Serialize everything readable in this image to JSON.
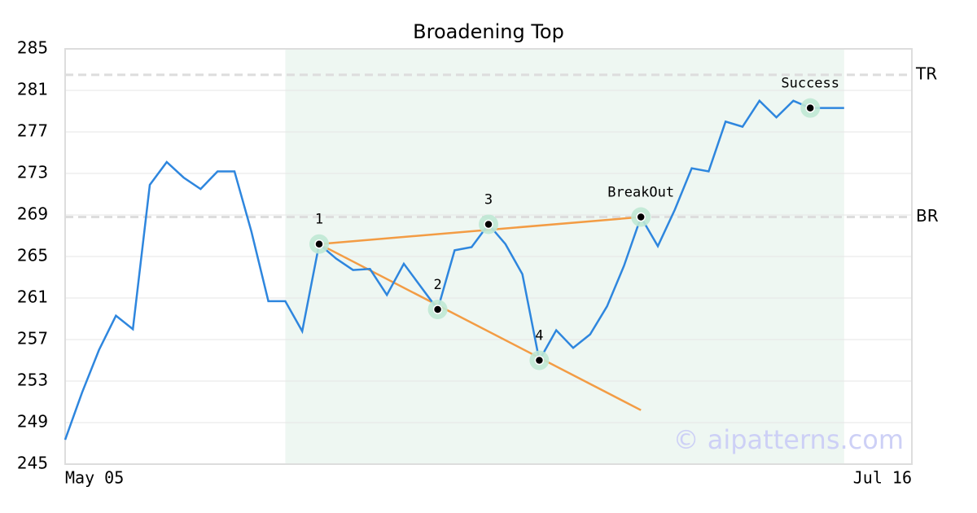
{
  "chart_data": {
    "type": "line",
    "title": "Broadening Top",
    "x": [
      0,
      1,
      2,
      3,
      4,
      5,
      6,
      7,
      8,
      9,
      10,
      11,
      12,
      13,
      14,
      15,
      16,
      17,
      18,
      19,
      20,
      21,
      22,
      23,
      24,
      25,
      26,
      27,
      28,
      29,
      30,
      31,
      32,
      33,
      34,
      35,
      36,
      37,
      38,
      39,
      40,
      41,
      42,
      43,
      44,
      45,
      46
    ],
    "series": [
      {
        "color": "#2e86de",
        "values": [
          247.35,
          251.9,
          256.0,
          259.3,
          258.0,
          271.9,
          274.1,
          272.6,
          271.5,
          273.2,
          273.2,
          267.4,
          260.7,
          260.7,
          257.8,
          266.2,
          264.8,
          263.7,
          263.8,
          261.3,
          264.3,
          262.1,
          259.9,
          265.6,
          265.9,
          268.1,
          266.2,
          263.3,
          255.0,
          257.9,
          256.2,
          257.5,
          260.2,
          264.1,
          268.8,
          266.0,
          269.5,
          273.5,
          273.2,
          278.0,
          277.5,
          280.0,
          278.4,
          280.0,
          279.3,
          279.3,
          279.3
        ]
      }
    ],
    "xlim": [
      0,
      50
    ],
    "xticks": [
      {
        "value": 0,
        "label": "May 05"
      },
      {
        "value": 50,
        "label": "Jul 16"
      }
    ],
    "ylim": [
      245,
      285
    ],
    "yticks": [
      245,
      249,
      253,
      257,
      261,
      265,
      269,
      273,
      277,
      281,
      285
    ],
    "grid": true,
    "highlight_x": [
      13,
      46
    ],
    "highlight_color": "#eef7f2",
    "levels": [
      {
        "label": "TR",
        "value": 282.5
      },
      {
        "label": "BR",
        "value": 268.8
      }
    ],
    "trend_lines": [
      {
        "x": [
          15,
          34
        ],
        "y": [
          266.2,
          268.8
        ],
        "color": "#f39c44"
      },
      {
        "x": [
          15,
          34
        ],
        "y": [
          266.2,
          250.2
        ],
        "color": "#f39c44"
      }
    ],
    "points": [
      {
        "label": "1",
        "x": 15,
        "y": 266.2
      },
      {
        "label": "2",
        "x": 22,
        "y": 259.9
      },
      {
        "label": "3",
        "x": 25,
        "y": 268.1
      },
      {
        "label": "4",
        "x": 28,
        "y": 255.0
      },
      {
        "label": "BreakOut",
        "x": 34,
        "y": 268.8
      },
      {
        "label": "Success",
        "x": 44,
        "y": 279.3
      }
    ],
    "watermark": "© aipatterns.com"
  }
}
